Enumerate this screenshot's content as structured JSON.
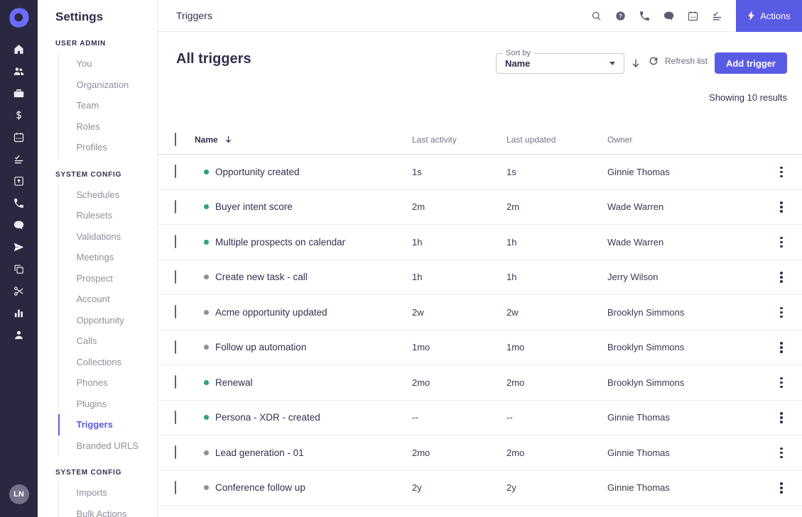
{
  "colors": {
    "accent": "#5a5be4",
    "rail_background": "#2b2740",
    "active_dot": "#2ea36f",
    "inactive_dot": "#8f8f9a"
  },
  "rail": {
    "logo_icon": "outreach-logo",
    "icons": [
      "home",
      "users",
      "briefcase",
      "dollar",
      "calendar",
      "task-check",
      "box-arrow-up",
      "phone",
      "chat",
      "send",
      "copy",
      "scissors",
      "bar-chart",
      "person"
    ],
    "avatar_initials": "LN"
  },
  "sidebar": {
    "title": "Settings",
    "sections": [
      {
        "heading": "USER ADMIN",
        "items": [
          {
            "label": "You",
            "active": false
          },
          {
            "label": "Organization",
            "active": false
          },
          {
            "label": "Team",
            "active": false
          },
          {
            "label": "Roles",
            "active": false
          },
          {
            "label": "Profiles",
            "active": false
          }
        ]
      },
      {
        "heading": "SYSTEM CONFIG",
        "items": [
          {
            "label": "Schedules",
            "active": false
          },
          {
            "label": "Rulesets",
            "active": false
          },
          {
            "label": "Validations",
            "active": false
          },
          {
            "label": "Meetings",
            "active": false
          },
          {
            "label": "Prospect",
            "active": false
          },
          {
            "label": "Account",
            "active": false
          },
          {
            "label": "Opportunity",
            "active": false
          },
          {
            "label": "Calls",
            "active": false
          },
          {
            "label": "Collections",
            "active": false
          },
          {
            "label": "Phones",
            "active": false
          },
          {
            "label": "Plugins",
            "active": false
          },
          {
            "label": "Triggers",
            "active": true
          },
          {
            "label": "Branded URLS",
            "active": false
          }
        ]
      },
      {
        "heading": "SYSTEM CONFIG",
        "items": [
          {
            "label": "Imports",
            "active": false
          },
          {
            "label": "Bulk Actions",
            "active": false
          }
        ]
      }
    ]
  },
  "topbar": {
    "title": "Triggers",
    "icons": [
      "search",
      "help",
      "phone",
      "chat",
      "calendar",
      "task-check"
    ],
    "actions_button": {
      "label": "Actions",
      "icon": "lightning-bolt"
    }
  },
  "toolbar": {
    "page_title": "All triggers",
    "sort": {
      "label": "Sort by",
      "value": "Name"
    },
    "sort_direction_icon": "arrow-down",
    "refresh_label": "Refresh list",
    "add_button_label": "Add trigger",
    "results_text": "Showing 10 results"
  },
  "table": {
    "columns": [
      "Name",
      "Last activity",
      "Last updated",
      "Owner"
    ],
    "sort_column": "Name",
    "rows": [
      {
        "name": "Opportunity created",
        "status": "active",
        "last_activity": "1s",
        "last_updated": "1s",
        "owner": "Ginnie Thomas"
      },
      {
        "name": "Buyer intent score",
        "status": "active",
        "last_activity": "2m",
        "last_updated": "2m",
        "owner": "Wade Warren"
      },
      {
        "name": "Multiple prospects on calendar",
        "status": "active",
        "last_activity": "1h",
        "last_updated": "1h",
        "owner": "Wade Warren"
      },
      {
        "name": "Create new task - call",
        "status": "inactive",
        "last_activity": "1h",
        "last_updated": "1h",
        "owner": "Jerry Wilson"
      },
      {
        "name": "Acme opportunity updated",
        "status": "inactive",
        "last_activity": "2w",
        "last_updated": "2w",
        "owner": "Brooklyn Simmons"
      },
      {
        "name": "Follow up automation",
        "status": "inactive",
        "last_activity": "1mo",
        "last_updated": "1mo",
        "owner": "Brooklyn Simmons"
      },
      {
        "name": "Renewal",
        "status": "active",
        "last_activity": "2mo",
        "last_updated": "2mo",
        "owner": "Brooklyn Simmons"
      },
      {
        "name": "Persona - XDR  - created",
        "status": "active",
        "last_activity": "--",
        "last_updated": "--",
        "owner": "Ginnie Thomas"
      },
      {
        "name": "Lead generation - 01",
        "status": "inactive",
        "last_activity": "2mo",
        "last_updated": "2mo",
        "owner": "Ginnie Thomas"
      },
      {
        "name": "Conference follow up",
        "status": "inactive",
        "last_activity": "2y",
        "last_updated": "2y",
        "owner": "Ginnie Thomas"
      }
    ]
  }
}
